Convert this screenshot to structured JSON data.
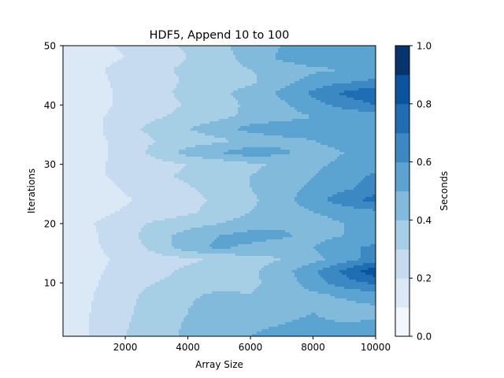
{
  "chart_data": {
    "type": "heatmap",
    "subtype": "filled-contour",
    "title": "HDF5, Append 10 to 100",
    "xlabel": "Array Size",
    "ylabel": "Iterations",
    "xlim": [
      10,
      10000
    ],
    "ylim": [
      1,
      50
    ],
    "xticks": [
      2000,
      4000,
      6000,
      8000,
      10000
    ],
    "yticks": [
      10,
      20,
      30,
      40,
      50
    ],
    "colorbar": {
      "label": "Seconds",
      "levels": [
        0.0,
        0.1,
        0.2,
        0.3,
        0.4,
        0.5,
        0.6,
        0.7,
        0.8,
        0.9,
        1.0
      ],
      "ticks": [
        0.0,
        0.2,
        0.4,
        0.6,
        0.8,
        1.0
      ],
      "colors": [
        "#f1f7fd",
        "#dbe9f6",
        "#c6dbef",
        "#a6cee4",
        "#82badb",
        "#5ba3d0",
        "#3b88c3",
        "#1f6eb3",
        "#0a539e",
        "#08336d"
      ]
    },
    "grid": false,
    "legend": "none",
    "x": [
      10,
      1000,
      2000,
      3000,
      4000,
      5000,
      6000,
      7000,
      8000,
      9000,
      10000
    ],
    "y": [
      1,
      5,
      8,
      10,
      12,
      14,
      16,
      18,
      20,
      22,
      24,
      26,
      28,
      30,
      32,
      34,
      36,
      38,
      40,
      42,
      44,
      46,
      48,
      50
    ],
    "z": [
      [
        0.12,
        0.22,
        0.3,
        0.36,
        0.42,
        0.46,
        0.5,
        0.54,
        0.56,
        0.58,
        0.6
      ],
      [
        0.13,
        0.21,
        0.28,
        0.36,
        0.4,
        0.5,
        0.45,
        0.46,
        0.5,
        0.44,
        0.46
      ],
      [
        0.13,
        0.2,
        0.27,
        0.34,
        0.38,
        0.42,
        0.4,
        0.44,
        0.48,
        0.52,
        0.56
      ],
      [
        0.13,
        0.19,
        0.26,
        0.3,
        0.34,
        0.36,
        0.38,
        0.44,
        0.55,
        0.66,
        0.72
      ],
      [
        0.12,
        0.18,
        0.24,
        0.27,
        0.32,
        0.34,
        0.38,
        0.46,
        0.58,
        0.72,
        0.88
      ],
      [
        0.12,
        0.18,
        0.22,
        0.26,
        0.28,
        0.32,
        0.36,
        0.4,
        0.46,
        0.56,
        0.64
      ],
      [
        0.12,
        0.19,
        0.24,
        0.34,
        0.46,
        0.52,
        0.48,
        0.44,
        0.5,
        0.58,
        0.62
      ],
      [
        0.12,
        0.19,
        0.26,
        0.36,
        0.44,
        0.5,
        0.54,
        0.52,
        0.46,
        0.5,
        0.54
      ],
      [
        0.12,
        0.2,
        0.26,
        0.32,
        0.36,
        0.4,
        0.44,
        0.48,
        0.46,
        0.5,
        0.56
      ],
      [
        0.11,
        0.17,
        0.21,
        0.24,
        0.28,
        0.34,
        0.4,
        0.44,
        0.5,
        0.54,
        0.58
      ],
      [
        0.11,
        0.15,
        0.19,
        0.23,
        0.27,
        0.32,
        0.38,
        0.46,
        0.56,
        0.66,
        0.74
      ],
      [
        0.11,
        0.16,
        0.21,
        0.25,
        0.29,
        0.34,
        0.4,
        0.46,
        0.52,
        0.58,
        0.64
      ],
      [
        0.11,
        0.18,
        0.23,
        0.28,
        0.32,
        0.36,
        0.4,
        0.44,
        0.5,
        0.56,
        0.62
      ],
      [
        0.11,
        0.18,
        0.23,
        0.26,
        0.3,
        0.34,
        0.38,
        0.42,
        0.48,
        0.52,
        0.56
      ],
      [
        0.11,
        0.17,
        0.24,
        0.34,
        0.44,
        0.5,
        0.56,
        0.52,
        0.46,
        0.5,
        0.54
      ],
      [
        0.11,
        0.17,
        0.24,
        0.3,
        0.34,
        0.38,
        0.42,
        0.46,
        0.5,
        0.54,
        0.58
      ],
      [
        0.11,
        0.18,
        0.26,
        0.34,
        0.4,
        0.46,
        0.54,
        0.58,
        0.56,
        0.54,
        0.56
      ],
      [
        0.11,
        0.18,
        0.24,
        0.29,
        0.33,
        0.38,
        0.42,
        0.46,
        0.5,
        0.52,
        0.54
      ],
      [
        0.11,
        0.17,
        0.22,
        0.26,
        0.31,
        0.36,
        0.42,
        0.48,
        0.56,
        0.64,
        0.7
      ],
      [
        0.11,
        0.17,
        0.22,
        0.27,
        0.33,
        0.38,
        0.44,
        0.52,
        0.62,
        0.72,
        0.78
      ],
      [
        0.11,
        0.17,
        0.23,
        0.27,
        0.31,
        0.34,
        0.38,
        0.46,
        0.54,
        0.58,
        0.62
      ],
      [
        0.11,
        0.18,
        0.24,
        0.28,
        0.32,
        0.36,
        0.4,
        0.44,
        0.48,
        0.5,
        0.52
      ],
      [
        0.11,
        0.16,
        0.2,
        0.24,
        0.3,
        0.36,
        0.44,
        0.52,
        0.58,
        0.6,
        0.6
      ],
      [
        0.11,
        0.16,
        0.22,
        0.26,
        0.32,
        0.38,
        0.44,
        0.5,
        0.54,
        0.56,
        0.54
      ]
    ]
  }
}
